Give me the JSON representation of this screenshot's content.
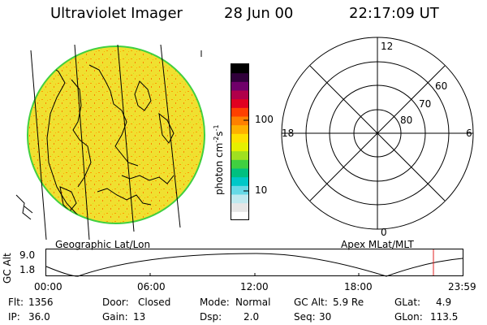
{
  "header": {
    "instrument": "Ultraviolet Imager",
    "date": "28 Jun 00",
    "time": "22:17:09 UT"
  },
  "colorbar": {
    "unit_label": "photon cm",
    "unit_exp1": "-2",
    "unit_s": "s",
    "unit_exp2": "-1",
    "ticks": [
      "100",
      "10"
    ],
    "colors": [
      "#ffffff",
      "#e6e6e6",
      "#bfe9ef",
      "#66d9e6",
      "#00c8c8",
      "#00c080",
      "#40d040",
      "#a0e020",
      "#e6f000",
      "#ffe000",
      "#ffb000",
      "#ff8000",
      "#ff4000",
      "#e00020",
      "#b0004a",
      "#70006a",
      "#30003a",
      "#000000"
    ]
  },
  "image_panel": {
    "label": "Geographic Lat/Lon",
    "globe_fill": "#f0e030",
    "rim_color": "#40d040"
  },
  "polar_plot": {
    "label": "Apex MLat/MLT",
    "mlt_labels": {
      "top": "12",
      "left": "18",
      "right": "6",
      "bottom": "0"
    },
    "lat_labels": [
      "60",
      "70",
      "80"
    ]
  },
  "orbit_plot": {
    "ylabel": "GC Alt",
    "yticks": [
      "9.0",
      "1.8"
    ],
    "xticks": [
      "00:00",
      "06:00",
      "12:00",
      "18:00",
      "23:59"
    ],
    "marker_color": "#e02020"
  },
  "info": {
    "flt": {
      "label": "Flt:",
      "value": "1356"
    },
    "ip": {
      "label": "IP:",
      "value": "36.0"
    },
    "door": {
      "label": "Door:",
      "value": "Closed"
    },
    "gain": {
      "label": "Gain:",
      "value": "13"
    },
    "mode": {
      "label": "Mode:",
      "value": "Normal"
    },
    "dsp": {
      "label": "Dsp:",
      "value": "2.0"
    },
    "gcalt": {
      "label": "GC Alt:",
      "value": "5.9 Re"
    },
    "seq": {
      "label": "Seq:",
      "value": "30"
    },
    "glat": {
      "label": "GLat:",
      "value": "4.9"
    },
    "glon": {
      "label": "GLon:",
      "value": "113.5"
    }
  }
}
